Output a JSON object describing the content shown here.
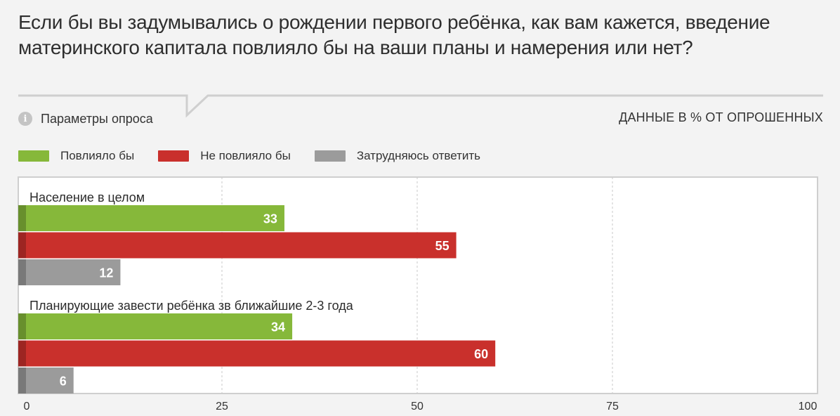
{
  "title": "Если бы вы задумывались о рождении первого ребёнка, как вам кажется, введение материнского капитала повлияло бы на ваши планы и намерения или нет?",
  "params_label": "Параметры опроса",
  "units_label": "ДАННЫЕ В % ОТ ОПРОШЕННЫХ",
  "colors": {
    "background": "#f3f3f3",
    "plot_background": "#ffffff",
    "green": "#86b83a",
    "red": "#c9302c",
    "gray": "#9b9b9b"
  },
  "chart_data": {
    "type": "bar",
    "orientation": "horizontal",
    "title": "Если бы вы задумывались о рождении первого ребёнка, как вам кажется, введение материнского капитала повлияло бы на ваши планы и намерения или нет?",
    "xlabel": "",
    "ylabel": "",
    "xlim": [
      0,
      100
    ],
    "x_ticks": [
      "0",
      "25",
      "50",
      "75",
      "100"
    ],
    "grid": "vertical dashed",
    "legend_position": "top-left",
    "legend": [
      "Повлияло бы",
      "Не повлияло бы",
      "Затрудняюсь ответить"
    ],
    "categories": [
      "Население в целом",
      "Планирующие завести ребёнка зв ближайшие 2-3 года"
    ],
    "series": [
      {
        "name": "Повлияло бы",
        "color": "#86b83a",
        "values": [
          33,
          34
        ]
      },
      {
        "name": "Не повлияло бы",
        "color": "#c9302c",
        "values": [
          55,
          60
        ]
      },
      {
        "name": "Затрудняюсь ответить",
        "color": "#9b9b9b",
        "values": [
          12,
          6
        ]
      }
    ]
  }
}
